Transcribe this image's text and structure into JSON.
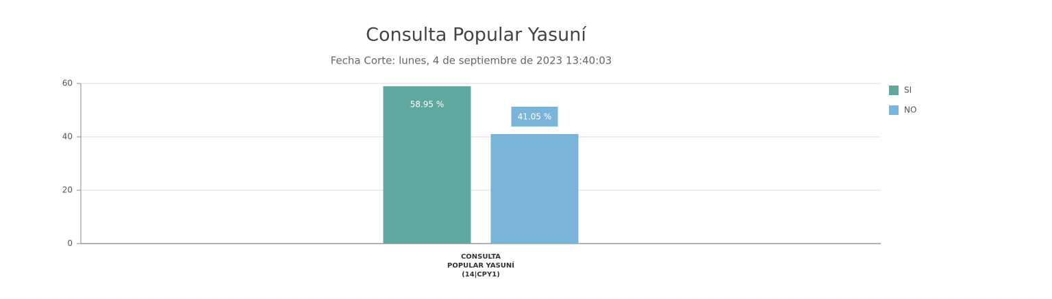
{
  "chart_data": {
    "type": "bar",
    "title": "Consulta Popular Yasuní",
    "subtitle": "Fecha Corte: lunes, 4 de septiembre de 2023 13:40:03",
    "categories": [
      "CONSULTA POPULAR YASUNÍ (14|CPY1)"
    ],
    "series": [
      {
        "name": "SI",
        "color": "#5fa8a0",
        "values": [
          58.95
        ],
        "value_labels": [
          "58.95 %"
        ]
      },
      {
        "name": "NO",
        "color": "#7ab5d9",
        "values": [
          41.05
        ],
        "value_labels": [
          "41.05 %"
        ]
      }
    ],
    "ylim": [
      0,
      60
    ],
    "yticks": [
      0,
      20,
      40,
      60
    ],
    "grid": true,
    "legend": "top-right"
  }
}
